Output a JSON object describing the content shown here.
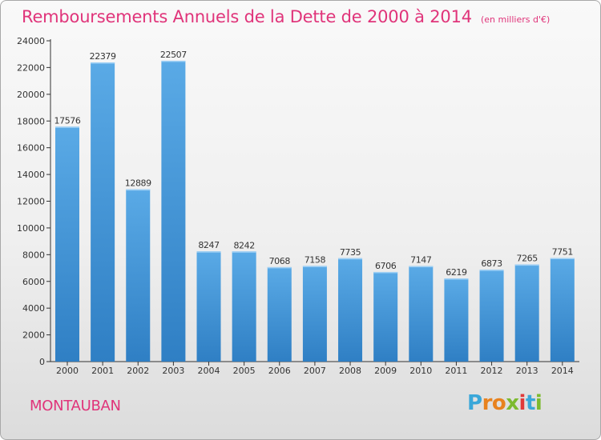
{
  "chart_data": {
    "type": "bar",
    "title": "Remboursements Annuels de la Dette de 2000 à 2014",
    "unit_note": "(en milliers d'€)",
    "categories": [
      "2000",
      "2001",
      "2002",
      "2003",
      "2004",
      "2005",
      "2006",
      "2007",
      "2008",
      "2009",
      "2010",
      "2011",
      "2012",
      "2013",
      "2014"
    ],
    "values": [
      17576,
      22379,
      12889,
      22507,
      8247,
      8242,
      7068,
      7158,
      7735,
      6706,
      7147,
      6219,
      6873,
      7265,
      7751
    ],
    "ylim": [
      0,
      24000
    ],
    "yticks": [
      0,
      2000,
      4000,
      6000,
      8000,
      10000,
      12000,
      14000,
      16000,
      18000,
      20000,
      22000,
      24000
    ],
    "grid": false,
    "bar_color_top": "#5aaae6",
    "bar_color_bottom": "#2f7fc4"
  },
  "footer": {
    "city": "MONTAUBAN",
    "logo_letters": [
      "P",
      "r",
      "o",
      "x",
      "i",
      "t",
      "i"
    ],
    "logo_colors": [
      "#3aa7d9",
      "#e8821e",
      "#e8821e",
      "#7cba2f",
      "#e03a3a",
      "#3aa7d9",
      "#7cba2f"
    ]
  },
  "colors": {
    "accent": "#e0347a"
  }
}
